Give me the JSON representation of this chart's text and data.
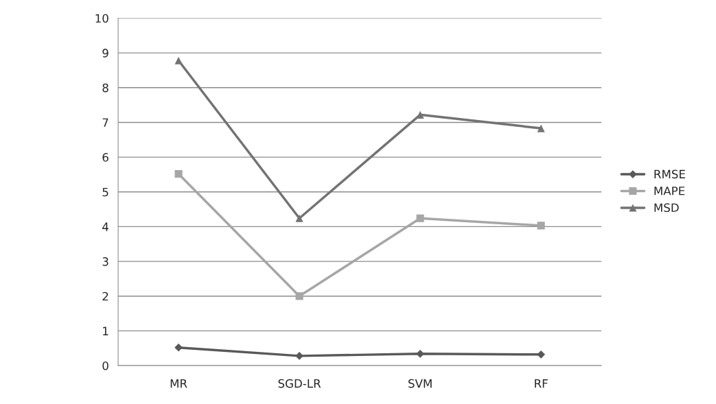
{
  "chart_data": {
    "type": "line",
    "categories": [
      "MR",
      "SGD-LR",
      "SVM",
      "RF"
    ],
    "series": [
      {
        "name": "RMSE",
        "color": "#595959",
        "marker": "diamond",
        "values": [
          0.52,
          0.28,
          0.34,
          0.32
        ]
      },
      {
        "name": "MAPE",
        "color": "#a6a6a6",
        "marker": "square",
        "values": [
          5.52,
          2.0,
          4.24,
          4.03
        ]
      },
      {
        "name": "MSD",
        "color": "#737373",
        "marker": "triangle",
        "values": [
          8.78,
          4.24,
          7.22,
          6.83
        ]
      }
    ],
    "ylim": [
      0,
      10
    ],
    "yticks": [
      0,
      1,
      2,
      3,
      4,
      5,
      6,
      7,
      8,
      9,
      10
    ],
    "grid": "y",
    "legend": "right",
    "line_style": "solid"
  }
}
